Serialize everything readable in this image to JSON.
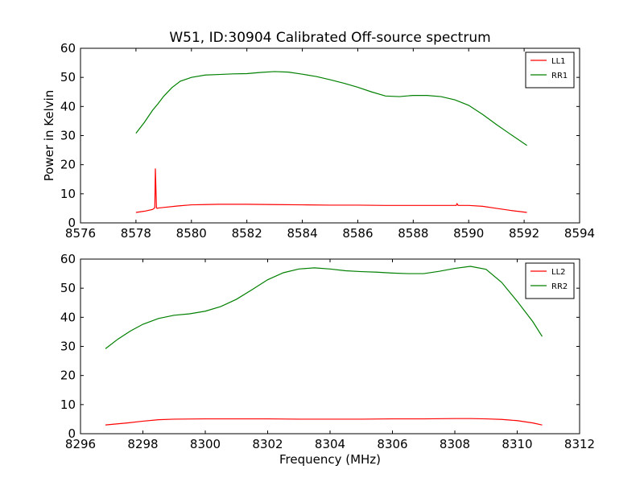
{
  "figure": {
    "title": "W51, ID:30904 Calibrated Off-source spectrum"
  },
  "chart_data": [
    {
      "type": "line",
      "title": "W51, ID:30904 Calibrated Off-source spectrum",
      "xlabel": "",
      "ylabel": "Power in Kelvin",
      "xlim": [
        8576,
        8594
      ],
      "ylim": [
        0,
        60
      ],
      "xticks": [
        8576,
        8578,
        8580,
        8582,
        8584,
        8586,
        8588,
        8590,
        8592,
        8594
      ],
      "yticks": [
        0,
        10,
        20,
        30,
        40,
        50,
        60
      ],
      "grid": false,
      "legend_position": "top-right",
      "series": [
        {
          "name": "LL1",
          "color": "#ff0000",
          "x": [
            8578.0,
            8578.3,
            8578.6,
            8578.68,
            8578.7,
            8578.72,
            8578.74,
            8578.76,
            8578.8,
            8579.0,
            8579.5,
            8580.0,
            8581.0,
            8582.0,
            8583.0,
            8584.0,
            8585.0,
            8586.0,
            8587.0,
            8588.0,
            8589.0,
            8589.55,
            8589.58,
            8589.62,
            8590.0,
            8590.5,
            8591.0,
            8591.5,
            8592.1
          ],
          "y": [
            3.6,
            4.0,
            4.6,
            5.2,
            18.7,
            12.0,
            5.2,
            5.0,
            5.1,
            5.3,
            5.8,
            6.2,
            6.4,
            6.4,
            6.3,
            6.2,
            6.1,
            6.1,
            6.0,
            6.0,
            6.0,
            6.0,
            6.6,
            6.0,
            6.0,
            5.7,
            5.0,
            4.3,
            3.6
          ]
        },
        {
          "name": "RR1",
          "color": "#008000",
          "x": [
            8578.0,
            8578.3,
            8578.6,
            8578.8,
            8579.0,
            8579.3,
            8579.6,
            8580.0,
            8580.5,
            8581.0,
            8581.5,
            8582.0,
            8582.5,
            8583.0,
            8583.5,
            8584.0,
            8584.5,
            8585.0,
            8585.5,
            8586.0,
            8586.5,
            8587.0,
            8587.5,
            8588.0,
            8588.5,
            8589.0,
            8589.5,
            8590.0,
            8590.5,
            8591.0,
            8591.5,
            8592.1
          ],
          "y": [
            30.8,
            34.5,
            38.7,
            41.0,
            43.5,
            46.5,
            48.7,
            50.0,
            50.8,
            51.0,
            51.2,
            51.3,
            51.7,
            52.0,
            51.8,
            51.1,
            50.3,
            49.2,
            48.0,
            46.6,
            45.0,
            43.6,
            43.4,
            43.8,
            43.8,
            43.4,
            42.3,
            40.4,
            37.3,
            33.8,
            30.5,
            26.6
          ]
        }
      ]
    },
    {
      "type": "line",
      "title": "",
      "xlabel": "Frequency (MHz)",
      "ylabel": "",
      "xlim": [
        8296,
        8312
      ],
      "ylim": [
        0,
        60
      ],
      "xticks": [
        8296,
        8298,
        8300,
        8302,
        8304,
        8306,
        8308,
        8310,
        8312
      ],
      "yticks": [
        0,
        10,
        20,
        30,
        40,
        50,
        60
      ],
      "grid": false,
      "legend_position": "top-right",
      "series": [
        {
          "name": "LL2",
          "color": "#ff0000",
          "x": [
            8296.8,
            8297.5,
            8298.0,
            8298.5,
            8299.0,
            8300.0,
            8301.0,
            8302.0,
            8303.0,
            8304.0,
            8305.0,
            8306.0,
            8307.0,
            8308.0,
            8308.5,
            8309.0,
            8309.5,
            8310.0,
            8310.5,
            8310.8
          ],
          "y": [
            3.0,
            3.7,
            4.3,
            4.8,
            5.0,
            5.1,
            5.1,
            5.1,
            5.0,
            5.0,
            5.0,
            5.1,
            5.1,
            5.2,
            5.2,
            5.1,
            4.9,
            4.5,
            3.7,
            3.0
          ]
        },
        {
          "name": "RR2",
          "color": "#008000",
          "x": [
            8296.8,
            8297.2,
            8297.6,
            8298.0,
            8298.5,
            8299.0,
            8299.5,
            8300.0,
            8300.5,
            8301.0,
            8301.5,
            8302.0,
            8302.5,
            8303.0,
            8303.5,
            8304.0,
            8304.5,
            8305.0,
            8305.5,
            8306.0,
            8306.5,
            8307.0,
            8307.5,
            8308.0,
            8308.5,
            8309.0,
            8309.5,
            8310.0,
            8310.5,
            8310.8
          ],
          "y": [
            29.2,
            32.5,
            35.3,
            37.6,
            39.6,
            40.7,
            41.2,
            42.1,
            43.7,
            46.2,
            49.5,
            52.9,
            55.3,
            56.6,
            57.0,
            56.6,
            56.0,
            55.7,
            55.5,
            55.2,
            55.0,
            55.0,
            55.8,
            56.8,
            57.5,
            56.5,
            52.0,
            45.5,
            38.5,
            33.4
          ]
        }
      ]
    }
  ]
}
